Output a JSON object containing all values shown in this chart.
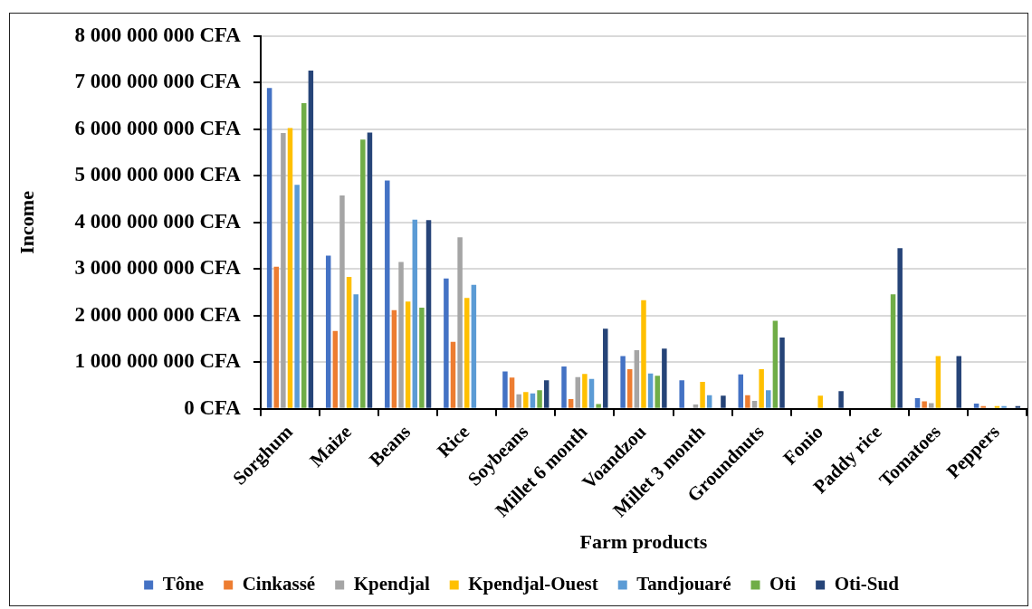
{
  "chart_data": {
    "type": "bar",
    "xlabel": "Farm products",
    "ylabel": "Income",
    "categories": [
      "Sorghum",
      "Maize",
      "Beans",
      "Rice",
      "Soybeans",
      "Millet 6 month",
      "Voandzou",
      "Millet 3 month",
      "Groundnuts",
      "Fonio",
      "Paddy rice",
      "Tomatoes",
      "Peppers"
    ],
    "series": [
      {
        "name": "Tône",
        "color": "#4472c4",
        "values": [
          6890000000,
          3290000000,
          4900000000,
          2800000000,
          800000000,
          910000000,
          1130000000,
          610000000,
          740000000,
          null,
          null,
          230000000,
          110000000
        ]
      },
      {
        "name": "Cinkassé",
        "color": "#ed7d31",
        "values": [
          3050000000,
          1670000000,
          2120000000,
          1440000000,
          670000000,
          210000000,
          850000000,
          null,
          290000000,
          null,
          null,
          160000000,
          60000000
        ]
      },
      {
        "name": "Kpendjal",
        "color": "#a5a5a5",
        "values": [
          5920000000,
          4580000000,
          3150000000,
          3680000000,
          310000000,
          680000000,
          1260000000,
          90000000,
          170000000,
          null,
          null,
          120000000,
          null
        ]
      },
      {
        "name": "Kpendjal-Ouest",
        "color": "#ffc000",
        "values": [
          6030000000,
          2830000000,
          2300000000,
          2380000000,
          360000000,
          750000000,
          2330000000,
          580000000,
          850000000,
          280000000,
          null,
          1130000000,
          60000000
        ]
      },
      {
        "name": "Tandjouaré",
        "color": "#5b9bd5",
        "values": [
          4810000000,
          2460000000,
          4060000000,
          2660000000,
          330000000,
          640000000,
          760000000,
          290000000,
          400000000,
          null,
          null,
          null,
          60000000
        ]
      },
      {
        "name": "Oti",
        "color": "#70ad47",
        "values": [
          6560000000,
          5780000000,
          2170000000,
          null,
          400000000,
          100000000,
          710000000,
          null,
          1890000000,
          null,
          2460000000,
          null,
          null
        ]
      },
      {
        "name": "Oti-Sud",
        "color": "#264478",
        "values": [
          7260000000,
          5930000000,
          4050000000,
          null,
          610000000,
          1720000000,
          1290000000,
          280000000,
          1530000000,
          380000000,
          3450000000,
          1130000000,
          60000000
        ]
      }
    ],
    "ylim": [
      0,
      8000000000
    ],
    "yticks": [
      {
        "value": 0,
        "label": "0 CFA"
      },
      {
        "value": 1000000000,
        "label": "1 000 000 000 CFA"
      },
      {
        "value": 2000000000,
        "label": "2 000 000 000 CFA"
      },
      {
        "value": 3000000000,
        "label": "3 000 000 000 CFA"
      },
      {
        "value": 4000000000,
        "label": "4 000 000 000 CFA"
      },
      {
        "value": 5000000000,
        "label": "5 000 000 000 CFA"
      },
      {
        "value": 6000000000,
        "label": "6 000 000 000 CFA"
      },
      {
        "value": 7000000000,
        "label": "7 000 000 000 CFA"
      },
      {
        "value": 8000000000,
        "label": "8 000 000 000 CFA"
      }
    ],
    "grid": "y",
    "legend": "bottom"
  }
}
